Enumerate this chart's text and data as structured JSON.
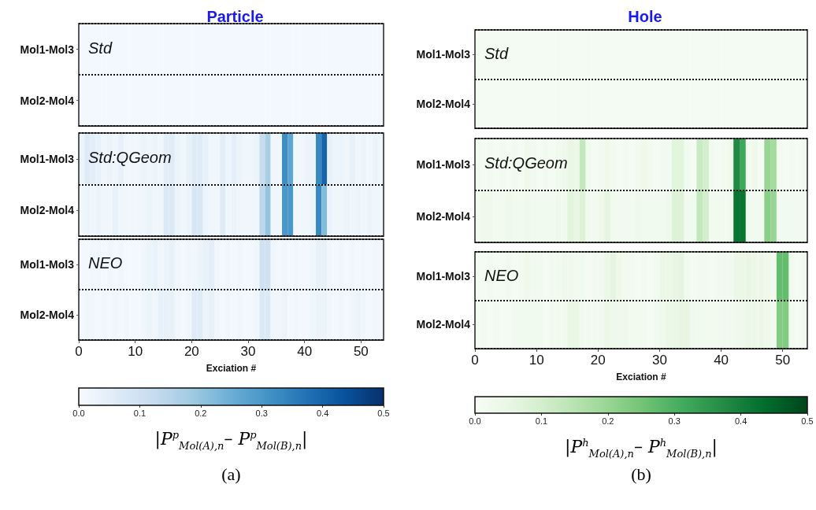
{
  "chart_data": [
    {
      "type": "heatmap",
      "title": "Particle",
      "xlabel": "Exciation #",
      "annotations": [
        "Std",
        "Std:QGeom",
        "NEO",
        "(a)"
      ],
      "y_categories": [
        "Mol1-Mol3",
        "Mol2-Mol4",
        "Mol1-Mol3",
        "Mol2-Mol4",
        "Mol1-Mol3",
        "Mol2-Mol4"
      ],
      "x": [
        0.5,
        1.5,
        2.5,
        3.5,
        4.5,
        5.5,
        6.5,
        7.5,
        8.5,
        9.5,
        10.5,
        11.5,
        12.5,
        13.5,
        14.5,
        15.5,
        16.5,
        17.5,
        18.5,
        19.5,
        20.5,
        21.5,
        22.5,
        23.5,
        24.5,
        25.5,
        26.5,
        27.5,
        28.5,
        29.5,
        30.5,
        31.5,
        32.5,
        33.5,
        34.5,
        35.5,
        36.5,
        37.5,
        38.5,
        39.5,
        40.5,
        41.5,
        42.5,
        43.5,
        44.5,
        45.5,
        46.5,
        47.5,
        48.5,
        49.5,
        50.5,
        51.5,
        52.5,
        53.5
      ],
      "xlim": [
        0,
        54
      ],
      "xticks": [
        0,
        10,
        20,
        30,
        40,
        50
      ],
      "grid": "y",
      "clim": [
        0,
        0.5
      ],
      "cticks": [
        {
          "value": 0,
          "label": "0.0"
        },
        {
          "value": 0.1,
          "label": "0.1"
        },
        {
          "value": 0.2,
          "label": "0.2"
        },
        {
          "value": 0.3,
          "label": "0.3"
        },
        {
          "value": 0.4,
          "label": "0.4"
        },
        {
          "value": 0.5,
          "label": "0.5"
        }
      ],
      "clabel": "|P$^{p}$$_{Mol(A),n}$– P$^{p}$$_{Mol(B),n}$|",
      "cells": [
        [
          0.01,
          0.01,
          0.01,
          0.01,
          0.01,
          0.01,
          0.01,
          0.01,
          0.01,
          0.01,
          0.01,
          0.01,
          0.01,
          0.01,
          0.01,
          0.01,
          0.01,
          0.01,
          0.01,
          0.01,
          0.01,
          0.01,
          0.01,
          0.01,
          0.01,
          0.01,
          0.01,
          0.01,
          0.01,
          0.01,
          0.01,
          0.01,
          0.01,
          0.01,
          0.01,
          0.01,
          0.01,
          0.01,
          0.01,
          0.01,
          0.01,
          0.01,
          0.01,
          0.01,
          0.01,
          0.01,
          0.01,
          0.01,
          0.01,
          0.01,
          0.01,
          0.01,
          0.01,
          0.01
        ],
        [
          0.01,
          0.01,
          0.01,
          0.01,
          0.01,
          0.01,
          0.01,
          0.01,
          0.01,
          0.01,
          0.01,
          0.01,
          0.01,
          0.01,
          0.01,
          0.01,
          0.01,
          0.01,
          0.01,
          0.01,
          0.01,
          0.01,
          0.01,
          0.01,
          0.01,
          0.01,
          0.01,
          0.01,
          0.01,
          0.01,
          0.01,
          0.01,
          0.01,
          0.01,
          0.01,
          0.01,
          0.01,
          0.01,
          0.01,
          0.01,
          0.01,
          0.01,
          0.01,
          0.01,
          0.01,
          0.01,
          0.01,
          0.01,
          0.01,
          0.01,
          0.01,
          0.01,
          0.01,
          0.01
        ],
        [
          0.03,
          0.06,
          0.05,
          0.04,
          0.02,
          0.03,
          0.02,
          0.04,
          0.02,
          0.02,
          0.02,
          0.03,
          0.02,
          0.03,
          0.02,
          0.05,
          0.06,
          0.03,
          0.02,
          0.04,
          0.06,
          0.06,
          0.04,
          0.02,
          0.02,
          0.05,
          0.03,
          0.05,
          0.03,
          0.02,
          0.02,
          0.03,
          0.12,
          0.17,
          0.02,
          0.02,
          0.32,
          0.27,
          0.02,
          0.02,
          0.03,
          0.03,
          0.33,
          0.4,
          0.04,
          0.03,
          0.03,
          0.02,
          0.04,
          0.02,
          0.03,
          0.02,
          0.03,
          0.02
        ],
        [
          0.02,
          0.03,
          0.02,
          0.03,
          0.02,
          0.02,
          0.04,
          0.02,
          0.02,
          0.02,
          0.02,
          0.02,
          0.03,
          0.02,
          0.02,
          0.07,
          0.07,
          0.03,
          0.02,
          0.03,
          0.08,
          0.08,
          0.03,
          0.02,
          0.02,
          0.06,
          0.02,
          0.03,
          0.02,
          0.02,
          0.02,
          0.02,
          0.14,
          0.2,
          0.02,
          0.02,
          0.3,
          0.3,
          0.02,
          0.02,
          0.02,
          0.03,
          0.33,
          0.22,
          0.03,
          0.02,
          0.02,
          0.03,
          0.02,
          0.03,
          0.02,
          0.03,
          0.02,
          0.02
        ],
        [
          0.01,
          0.01,
          0.02,
          0.02,
          0.01,
          0.02,
          0.01,
          0.02,
          0.01,
          0.01,
          0.01,
          0.02,
          0.03,
          0.04,
          0.02,
          0.03,
          0.04,
          0.02,
          0.01,
          0.02,
          0.02,
          0.03,
          0.04,
          0.05,
          0.02,
          0.01,
          0.02,
          0.01,
          0.02,
          0.01,
          0.01,
          0.02,
          0.1,
          0.1,
          0.02,
          0.01,
          0.02,
          0.01,
          0.02,
          0.01,
          0.01,
          0.02,
          0.04,
          0.04,
          0.02,
          0.01,
          0.02,
          0.01,
          0.02,
          0.01,
          0.02,
          0.01,
          0.02,
          0.01
        ],
        [
          0.01,
          0.02,
          0.02,
          0.01,
          0.02,
          0.01,
          0.02,
          0.01,
          0.02,
          0.01,
          0.01,
          0.02,
          0.03,
          0.02,
          0.04,
          0.04,
          0.04,
          0.02,
          0.01,
          0.02,
          0.06,
          0.06,
          0.03,
          0.04,
          0.02,
          0.01,
          0.02,
          0.01,
          0.02,
          0.01,
          0.01,
          0.02,
          0.07,
          0.07,
          0.02,
          0.02,
          0.03,
          0.01,
          0.02,
          0.01,
          0.01,
          0.02,
          0.03,
          0.03,
          0.02,
          0.01,
          0.02,
          0.01,
          0.02,
          0.03,
          0.02,
          0.01,
          0.02,
          0.01
        ]
      ]
    },
    {
      "type": "heatmap",
      "title": "Hole",
      "xlabel": "Exciation #",
      "annotations": [
        "Std",
        "Std:QGeom",
        "NEO",
        "(b)"
      ],
      "y_categories": [
        "Mol1-Mol3",
        "Mol2-Mol4",
        "Mol1-Mol3",
        "Mol2-Mol4",
        "Mol1-Mol3",
        "Mol2-Mol4"
      ],
      "x": [
        0.5,
        1.5,
        2.5,
        3.5,
        4.5,
        5.5,
        6.5,
        7.5,
        8.5,
        9.5,
        10.5,
        11.5,
        12.5,
        13.5,
        14.5,
        15.5,
        16.5,
        17.5,
        18.5,
        19.5,
        20.5,
        21.5,
        22.5,
        23.5,
        24.5,
        25.5,
        26.5,
        27.5,
        28.5,
        29.5,
        30.5,
        31.5,
        32.5,
        33.5,
        34.5,
        35.5,
        36.5,
        37.5,
        38.5,
        39.5,
        40.5,
        41.5,
        42.5,
        43.5,
        44.5,
        45.5,
        46.5,
        47.5,
        48.5,
        49.5,
        50.5,
        51.5,
        52.5,
        53.5
      ],
      "xlim": [
        0,
        54
      ],
      "xticks": [
        0,
        10,
        20,
        30,
        40,
        50
      ],
      "grid": "y",
      "clim": [
        0,
        0.5
      ],
      "cticks": [
        {
          "value": 0,
          "label": "0.0"
        },
        {
          "value": 0.1,
          "label": "0.1"
        },
        {
          "value": 0.2,
          "label": "0.2"
        },
        {
          "value": 0.3,
          "label": "0.3"
        },
        {
          "value": 0.4,
          "label": "0.4"
        },
        {
          "value": 0.5,
          "label": "0.5"
        }
      ],
      "clabel": "|P$^{h}$$_{Mol(A),n}$– P$^{h}$$_{Mol(B),n}$|",
      "cells": [
        [
          0.01,
          0.01,
          0.01,
          0.01,
          0.01,
          0.01,
          0.01,
          0.01,
          0.01,
          0.01,
          0.01,
          0.01,
          0.01,
          0.01,
          0.01,
          0.01,
          0.01,
          0.01,
          0.01,
          0.01,
          0.01,
          0.01,
          0.01,
          0.01,
          0.01,
          0.01,
          0.01,
          0.01,
          0.01,
          0.01,
          0.01,
          0.01,
          0.01,
          0.01,
          0.01,
          0.01,
          0.01,
          0.01,
          0.01,
          0.01,
          0.01,
          0.01,
          0.01,
          0.01,
          0.01,
          0.01,
          0.01,
          0.01,
          0.01,
          0.01,
          0.01,
          0.01,
          0.01,
          0.01
        ],
        [
          0.01,
          0.01,
          0.01,
          0.01,
          0.01,
          0.01,
          0.01,
          0.01,
          0.01,
          0.01,
          0.01,
          0.01,
          0.01,
          0.01,
          0.01,
          0.01,
          0.01,
          0.01,
          0.01,
          0.01,
          0.01,
          0.01,
          0.01,
          0.01,
          0.01,
          0.01,
          0.01,
          0.01,
          0.01,
          0.01,
          0.01,
          0.01,
          0.01,
          0.01,
          0.01,
          0.01,
          0.01,
          0.01,
          0.01,
          0.01,
          0.01,
          0.01,
          0.01,
          0.01,
          0.01,
          0.01,
          0.01,
          0.01,
          0.01,
          0.01,
          0.01,
          0.01,
          0.01,
          0.01
        ],
        [
          0.02,
          0.01,
          0.02,
          0.01,
          0.02,
          0.01,
          0.02,
          0.01,
          0.03,
          0.02,
          0.01,
          0.02,
          0.01,
          0.02,
          0.03,
          0.05,
          0.04,
          0.13,
          0.02,
          0.01,
          0.02,
          0.03,
          0.02,
          0.01,
          0.02,
          0.01,
          0.02,
          0.03,
          0.02,
          0.01,
          0.02,
          0.02,
          0.07,
          0.07,
          0.02,
          0.01,
          0.12,
          0.1,
          0.02,
          0.01,
          0.02,
          0.03,
          0.38,
          0.32,
          0.02,
          0.03,
          0.01,
          0.2,
          0.18,
          0.02,
          0.01,
          0.02,
          0.01,
          0.02
        ],
        [
          0.02,
          0.03,
          0.03,
          0.02,
          0.02,
          0.03,
          0.02,
          0.02,
          0.03,
          0.02,
          0.02,
          0.02,
          0.02,
          0.03,
          0.02,
          0.07,
          0.05,
          0.08,
          0.02,
          0.02,
          0.03,
          0.06,
          0.02,
          0.02,
          0.02,
          0.02,
          0.03,
          0.02,
          0.02,
          0.02,
          0.02,
          0.03,
          0.08,
          0.08,
          0.02,
          0.02,
          0.13,
          0.1,
          0.02,
          0.02,
          0.02,
          0.03,
          0.42,
          0.42,
          0.02,
          0.02,
          0.02,
          0.22,
          0.2,
          0.02,
          0.02,
          0.02,
          0.02,
          0.02
        ],
        [
          0.01,
          0.01,
          0.02,
          0.01,
          0.01,
          0.02,
          0.01,
          0.02,
          0.03,
          0.02,
          0.02,
          0.01,
          0.02,
          0.02,
          0.03,
          0.03,
          0.02,
          0.02,
          0.01,
          0.02,
          0.02,
          0.04,
          0.06,
          0.03,
          0.02,
          0.02,
          0.01,
          0.02,
          0.01,
          0.02,
          0.04,
          0.04,
          0.05,
          0.06,
          0.02,
          0.01,
          0.02,
          0.02,
          0.01,
          0.02,
          0.02,
          0.02,
          0.04,
          0.04,
          0.05,
          0.04,
          0.04,
          0.03,
          0.02,
          0.27,
          0.27,
          0.02,
          0.01,
          0.02
        ],
        [
          0.01,
          0.02,
          0.01,
          0.02,
          0.01,
          0.01,
          0.02,
          0.02,
          0.02,
          0.02,
          0.02,
          0.01,
          0.02,
          0.02,
          0.02,
          0.05,
          0.05,
          0.02,
          0.02,
          0.02,
          0.02,
          0.04,
          0.03,
          0.03,
          0.03,
          0.02,
          0.02,
          0.02,
          0.01,
          0.02,
          0.03,
          0.04,
          0.04,
          0.05,
          0.05,
          0.02,
          0.02,
          0.02,
          0.02,
          0.02,
          0.02,
          0.02,
          0.03,
          0.03,
          0.04,
          0.04,
          0.04,
          0.03,
          0.02,
          0.23,
          0.23,
          0.02,
          0.01,
          0.02
        ]
      ]
    }
  ]
}
